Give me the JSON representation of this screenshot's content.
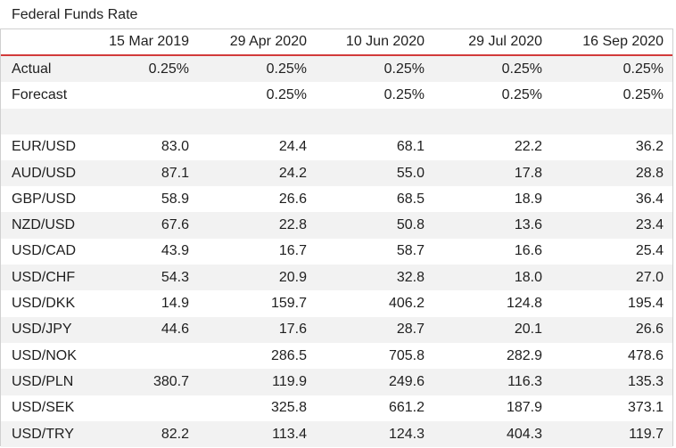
{
  "title": "Federal Funds Rate",
  "columns": [
    "15 Mar 2019",
    "29 Apr 2020",
    "10 Jun 2020",
    "29 Jul 2020",
    "16 Sep 2020"
  ],
  "rows": [
    {
      "label": "Actual",
      "values": [
        "0.25%",
        "0.25%",
        "0.25%",
        "0.25%",
        "0.25%"
      ]
    },
    {
      "label": "Forecast",
      "values": [
        "",
        "0.25%",
        "0.25%",
        "0.25%",
        "0.25%"
      ]
    },
    {
      "label": "",
      "values": [
        "",
        "",
        "",
        "",
        ""
      ]
    },
    {
      "label": "EUR/USD",
      "values": [
        "83.0",
        "24.4",
        "68.1",
        "22.2",
        "36.2"
      ]
    },
    {
      "label": "AUD/USD",
      "values": [
        "87.1",
        "24.2",
        "55.0",
        "17.8",
        "28.8"
      ]
    },
    {
      "label": "GBP/USD",
      "values": [
        "58.9",
        "26.6",
        "68.5",
        "18.9",
        "36.4"
      ]
    },
    {
      "label": "NZD/USD",
      "values": [
        "67.6",
        "22.8",
        "50.8",
        "13.6",
        "23.4"
      ]
    },
    {
      "label": "USD/CAD",
      "values": [
        "43.9",
        "16.7",
        "58.7",
        "16.6",
        "25.4"
      ]
    },
    {
      "label": "USD/CHF",
      "values": [
        "54.3",
        "20.9",
        "32.8",
        "18.0",
        "27.0"
      ]
    },
    {
      "label": "USD/DKK",
      "values": [
        "14.9",
        "159.7",
        "406.2",
        "124.8",
        "195.4"
      ]
    },
    {
      "label": "USD/JPY",
      "values": [
        "44.6",
        "17.6",
        "28.7",
        "20.1",
        "26.6"
      ]
    },
    {
      "label": "USD/NOK",
      "values": [
        "",
        "286.5",
        "705.8",
        "282.9",
        "478.6"
      ]
    },
    {
      "label": "USD/PLN",
      "values": [
        "380.7",
        "119.9",
        "249.6",
        "116.3",
        "135.3"
      ]
    },
    {
      "label": "USD/SEK",
      "values": [
        "",
        "325.8",
        "661.2",
        "187.9",
        "373.1"
      ]
    },
    {
      "label": "USD/TRY",
      "values": [
        "82.2",
        "113.4",
        "124.3",
        "404.3",
        "119.7"
      ]
    }
  ],
  "colors": {
    "header_rule": "#d23a3a",
    "alt_row": "#f2f2f2",
    "border": "#d0d0d0"
  }
}
